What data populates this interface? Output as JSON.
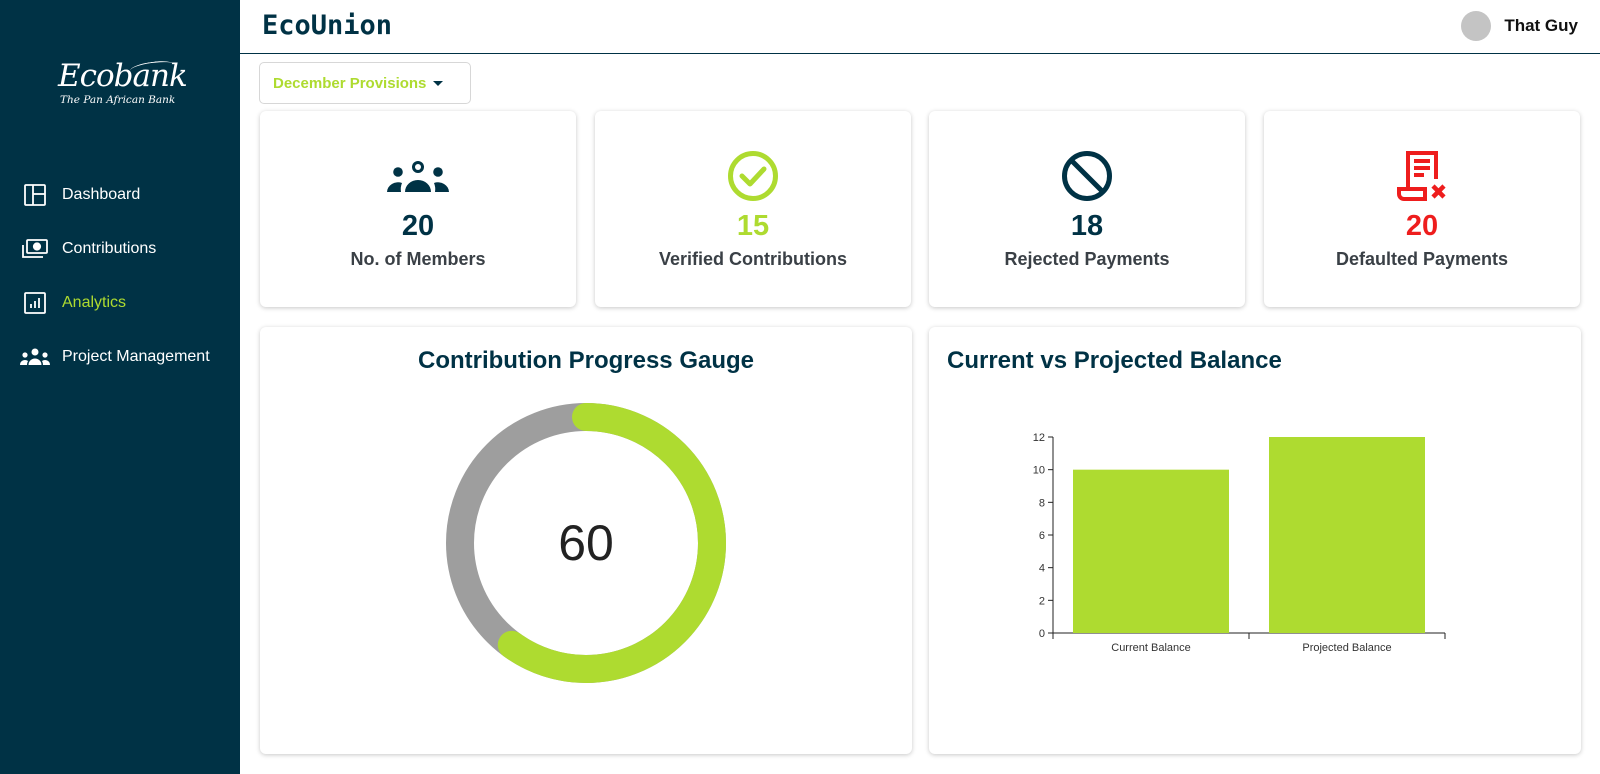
{
  "sidebar": {
    "logo": {
      "brand": "Ecobank",
      "tagline": "The Pan African Bank"
    },
    "items": [
      {
        "label": "Dashboard",
        "icon": "dashboard-icon",
        "active": false
      },
      {
        "label": "Contributions",
        "icon": "money-icon",
        "active": false
      },
      {
        "label": "Analytics",
        "icon": "analytics-icon",
        "active": true
      },
      {
        "label": "Project Management",
        "icon": "team-icon",
        "active": false
      }
    ]
  },
  "header": {
    "title": "EcoUnion",
    "user_name": "That Guy"
  },
  "filter": {
    "selected": "December Provisions"
  },
  "stats": [
    {
      "value": "20",
      "label": "No. of Members",
      "icon": "members-icon",
      "color": "#003245"
    },
    {
      "value": "15",
      "label": "Verified Contributions",
      "icon": "check-circle-icon",
      "color": "#AEDB30"
    },
    {
      "value": "18",
      "label": "Rejected Payments",
      "icon": "ban-icon",
      "color": "#003245"
    },
    {
      "value": "20",
      "label": "Defaulted Payments",
      "icon": "receipt-x-icon",
      "color": "#EE1D1D"
    }
  ],
  "gauge": {
    "title": "Contribution Progress Gauge",
    "value": 60,
    "max": 100,
    "display": "60",
    "fill_color": "#AEDB30",
    "track_color": "#9E9E9E"
  },
  "chart_data": {
    "type": "bar",
    "title": "Current vs Projected Balance",
    "categories": [
      "Current Balance",
      "Projected Balance"
    ],
    "values": [
      10,
      12
    ],
    "ylim": [
      0,
      12
    ],
    "yticks": [
      0,
      2,
      4,
      6,
      8,
      10,
      12
    ],
    "color": "#AEDB30",
    "grid": false,
    "xlabel": "",
    "ylabel": ""
  },
  "colors": {
    "navy": "#003245",
    "accent": "#AEDB30",
    "danger": "#EE1D1D"
  }
}
